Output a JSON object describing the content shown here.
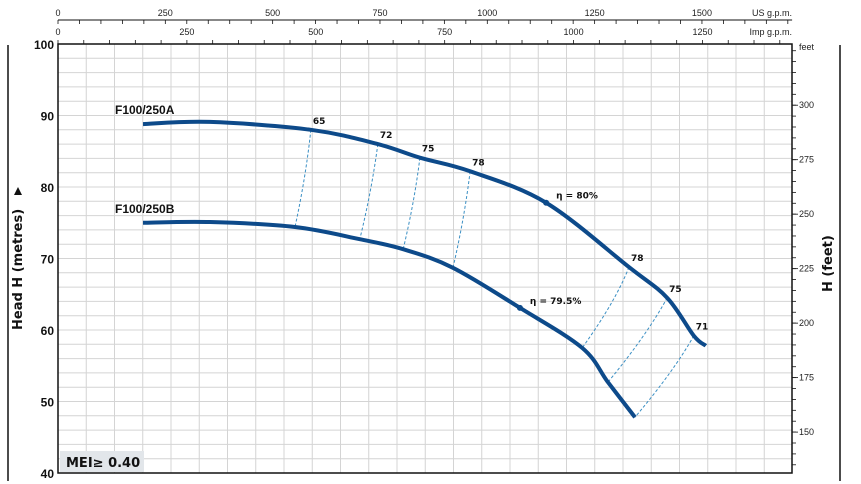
{
  "chart_data": {
    "type": "line",
    "title": "",
    "ylabel": "Head H (metres)",
    "ylabel_right": "H (feet)",
    "ylim": [
      40,
      100
    ],
    "y_ticks": [
      40,
      50,
      60,
      70,
      80,
      90,
      100
    ],
    "y_right_unit": "feet",
    "y_right_ticks": [
      150,
      175,
      200,
      225,
      250,
      275,
      300
    ],
    "x_axes": [
      {
        "unit": "US g.p.m.",
        "ticks": [
          0,
          250,
          500,
          750,
          1000,
          1250,
          1500
        ],
        "minor_step": 50,
        "max": 1710
      },
      {
        "unit": "Imp g.p.m.",
        "ticks": [
          0,
          250,
          500,
          750,
          1000,
          1250
        ],
        "minor_step": 50,
        "max": 1424
      }
    ],
    "grid": true,
    "series": [
      {
        "name": "F100/250A",
        "color": "#0d4a8a",
        "x": [
          198,
          354,
          589,
          745,
          843,
          960,
          1137,
          1330,
          1419,
          1481,
          1509
        ],
        "y": [
          88.8,
          89.1,
          88.0,
          86.0,
          84.1,
          82.2,
          77.8,
          68.8,
          64.5,
          59.2,
          57.8
        ],
        "best_efficiency": {
          "label": "η = 80%",
          "x": 1137,
          "y": 77.8
        }
      },
      {
        "name": "F100/250B",
        "color": "#0d4a8a",
        "x": [
          198,
          354,
          552,
          703,
          804,
          920,
          1076,
          1221,
          1281,
          1344
        ],
        "y": [
          75.0,
          75.1,
          74.4,
          72.7,
          71.3,
          68.7,
          63.1,
          57.5,
          52.7,
          47.8
        ],
        "best_efficiency": {
          "label": "η = 79.5%",
          "x": 1076,
          "y": 63.1
        }
      }
    ],
    "efficiency_lines": [
      {
        "label": "65",
        "from": [
          589,
          88.0
        ],
        "to": [
          552,
          74.4
        ]
      },
      {
        "label": "72",
        "from": [
          745,
          86.0
        ],
        "to": [
          703,
          72.7
        ]
      },
      {
        "label": "75",
        "from": [
          843,
          84.1
        ],
        "to": [
          804,
          71.3
        ]
      },
      {
        "label": "78",
        "from": [
          960,
          82.2
        ],
        "to": [
          920,
          68.7
        ]
      },
      {
        "label": "78",
        "from": [
          1330,
          68.8
        ],
        "to": [
          1221,
          57.5
        ]
      },
      {
        "label": "75",
        "from": [
          1419,
          64.5
        ],
        "to": [
          1281,
          52.7
        ]
      },
      {
        "label": "71",
        "from": [
          1481,
          59.2
        ],
        "to": [
          1344,
          47.8
        ]
      }
    ],
    "annotation": "MEI≥ 0.40"
  }
}
